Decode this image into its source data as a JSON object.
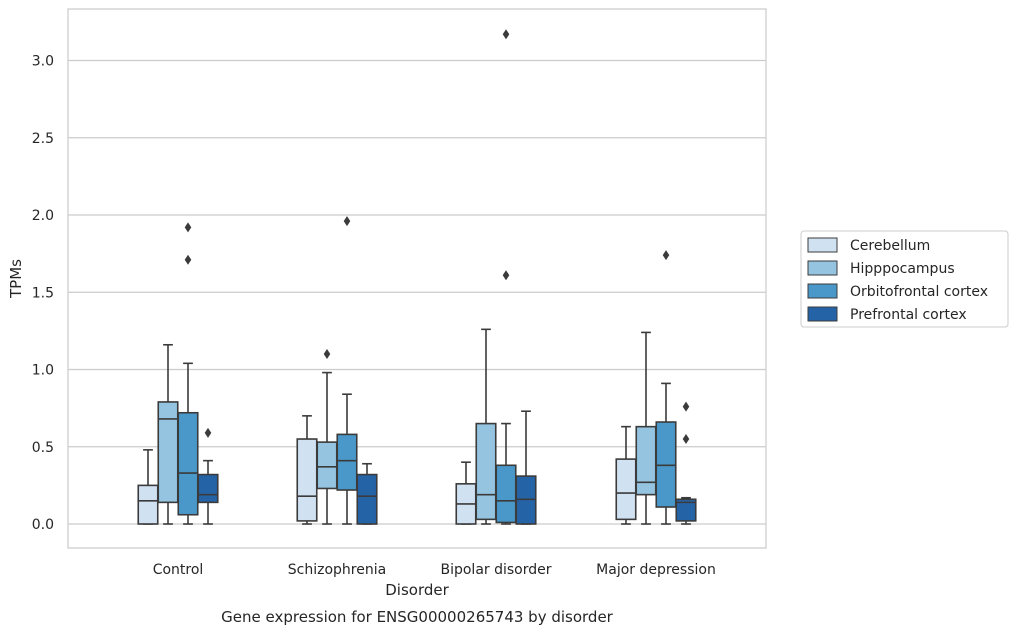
{
  "chart_data": {
    "type": "box",
    "title": "",
    "caption": "Gene expression for ENSG00000265743 by disorder",
    "xlabel": "Disorder",
    "ylabel": "TPMs",
    "ylim": [
      -0.15,
      3.35
    ],
    "yticks": [
      0.0,
      0.5,
      1.0,
      1.5,
      2.0,
      2.5,
      3.0
    ],
    "ytick_labels": [
      "0.0",
      "0.5",
      "1.0",
      "1.5",
      "2.0",
      "2.5",
      "3.0"
    ],
    "categories": [
      "Control",
      "Schizophrenia",
      "Bipolar disorder",
      "Major depression"
    ],
    "grid": "horizontal",
    "legend_position": "right",
    "series": [
      {
        "name": "Cerebellum",
        "color": "#d0e1f2",
        "boxes": [
          {
            "whislo": 0.0,
            "q1": 0.0,
            "med": 0.15,
            "q3": 0.25,
            "whishi": 0.48,
            "fliers": []
          },
          {
            "whislo": 0.0,
            "q1": 0.02,
            "med": 0.18,
            "q3": 0.55,
            "whishi": 0.7,
            "fliers": []
          },
          {
            "whislo": 0.0,
            "q1": 0.0,
            "med": 0.13,
            "q3": 0.26,
            "whishi": 0.4,
            "fliers": []
          },
          {
            "whislo": 0.0,
            "q1": 0.03,
            "med": 0.2,
            "q3": 0.42,
            "whishi": 0.63,
            "fliers": []
          }
        ]
      },
      {
        "name": "Hipppocampus",
        "color": "#94c4df",
        "boxes": [
          {
            "whislo": 0.0,
            "q1": 0.14,
            "med": 0.68,
            "q3": 0.79,
            "whishi": 1.16,
            "fliers": []
          },
          {
            "whislo": 0.0,
            "q1": 0.23,
            "med": 0.37,
            "q3": 0.53,
            "whishi": 0.98,
            "fliers": [
              1.1
            ]
          },
          {
            "whislo": 0.0,
            "q1": 0.03,
            "med": 0.19,
            "q3": 0.65,
            "whishi": 1.26,
            "fliers": []
          },
          {
            "whislo": 0.0,
            "q1": 0.19,
            "med": 0.27,
            "q3": 0.63,
            "whishi": 1.24,
            "fliers": []
          }
        ]
      },
      {
        "name": "Orbitofrontal cortex",
        "color": "#4a98c9",
        "boxes": [
          {
            "whislo": 0.0,
            "q1": 0.06,
            "med": 0.33,
            "q3": 0.72,
            "whishi": 1.04,
            "fliers": [
              1.71,
              1.92
            ]
          },
          {
            "whislo": 0.0,
            "q1": 0.22,
            "med": 0.41,
            "q3": 0.58,
            "whishi": 0.84,
            "fliers": [
              1.96
            ]
          },
          {
            "whislo": 0.0,
            "q1": 0.01,
            "med": 0.15,
            "q3": 0.38,
            "whishi": 0.65,
            "fliers": [
              1.61,
              3.17
            ]
          },
          {
            "whislo": 0.0,
            "q1": 0.11,
            "med": 0.38,
            "q3": 0.66,
            "whishi": 0.91,
            "fliers": [
              1.74
            ]
          }
        ]
      },
      {
        "name": "Prefrontal cortex",
        "color": "#2563a7",
        "boxes": [
          {
            "whislo": 0.0,
            "q1": 0.14,
            "med": 0.19,
            "q3": 0.32,
            "whishi": 0.41,
            "fliers": [
              0.59
            ]
          },
          {
            "whislo": 0.0,
            "q1": 0.0,
            "med": 0.18,
            "q3": 0.32,
            "whishi": 0.39,
            "fliers": []
          },
          {
            "whislo": 0.0,
            "q1": 0.0,
            "med": 0.16,
            "q3": 0.31,
            "whishi": 0.73,
            "fliers": []
          },
          {
            "whislo": 0.0,
            "q1": 0.02,
            "med": 0.14,
            "q3": 0.16,
            "whishi": 0.17,
            "fliers": [
              0.55,
              0.76
            ]
          }
        ]
      }
    ]
  }
}
